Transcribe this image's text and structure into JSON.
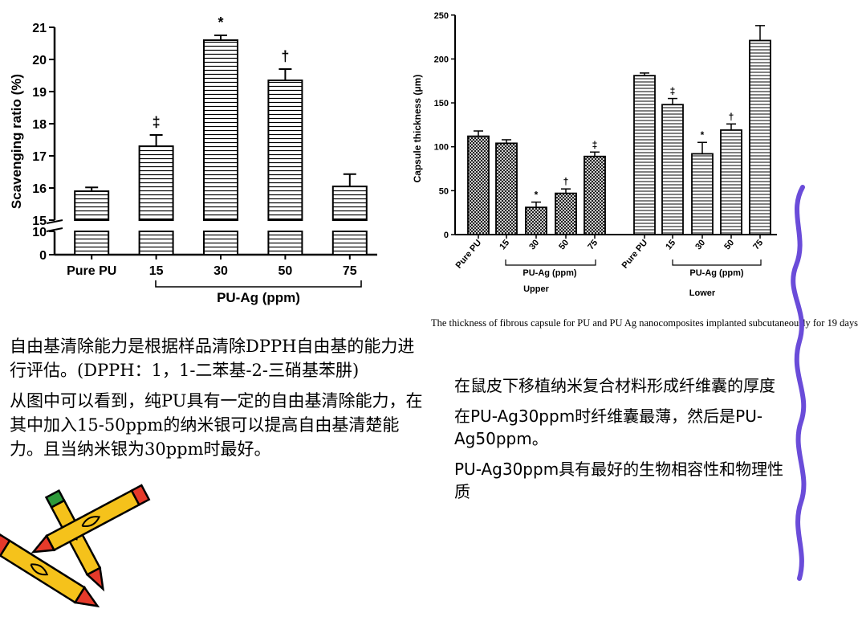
{
  "chart_data": [
    {
      "type": "bar",
      "ylabel": "Scavenging ratio (%)",
      "categories": [
        "Pure PU",
        "15",
        "30",
        "50",
        "75"
      ],
      "group_label": "PU-Ag (ppm)",
      "values": [
        15.9,
        17.3,
        20.6,
        19.35,
        16.05
      ],
      "errors": [
        0.12,
        0.35,
        0.15,
        0.35,
        0.38
      ],
      "markers": [
        "",
        "‡",
        "*",
        "†",
        ""
      ],
      "ylim": [
        0,
        21
      ],
      "axis_break": [
        10,
        15
      ],
      "yticks": [
        0,
        10,
        15,
        16,
        17,
        18,
        19,
        20,
        21
      ],
      "bar_pattern": "horizontal-lines"
    },
    {
      "type": "bar",
      "ylabel": "Capsule thickness (μm)",
      "categories": [
        "Pure PU",
        "15",
        "30",
        "50",
        "75",
        "Pure PU",
        "15",
        "30",
        "50",
        "75"
      ],
      "groups": [
        {
          "name": "Upper",
          "sublabel": "PU-Ag (ppm)",
          "pattern": "crosshatch",
          "values": [
            112,
            104,
            31,
            47,
            89
          ],
          "errors": [
            6,
            4,
            6,
            5,
            5
          ],
          "markers": [
            "",
            "",
            "*",
            "†",
            "‡"
          ]
        },
        {
          "name": "Lower",
          "sublabel": "PU-Ag (ppm)",
          "pattern": "horizontal-lines",
          "values": [
            181,
            148,
            92,
            119,
            221
          ],
          "errors": [
            3,
            7,
            13,
            7,
            17
          ],
          "markers": [
            "",
            "‡",
            "*",
            "†",
            ""
          ]
        }
      ],
      "ylim": [
        0,
        250
      ],
      "yticks": [
        0,
        50,
        100,
        150,
        200,
        250
      ]
    }
  ],
  "right_chart_caption": "The thickness of fibrous capsule for PU and PU  Ag nanocomposites implanted subcutaneously for 19 days",
  "left_text": {
    "p1": "自由基清除能力是根据样品清除DPPH自由基的能力进行评估。(DPPH：1，1-二苯基-2-三硝基苯肼)",
    "p2": "从图中可以看到，纯PU具有一定的自由基清除能力，在其中加入15-50ppm的纳米银可以提高自由基清楚能力。且当纳米银为30ppm时最好。"
  },
  "right_text": {
    "p1": "在鼠皮下移植纳米复合材料形成纤维囊的厚度",
    "p2": "在PU-Ag30ppm时纤维囊最薄，然后是PU-Ag50ppm。",
    "p3": "PU-Ag30ppm具有最好的生物相容性和物理性质"
  },
  "colors": {
    "text": "#000000",
    "decoration": "#6a4cd9",
    "pencil_body": "#f5c21b",
    "pencil_tip": "#e53a2a",
    "pencil_cap": "#2e9a3a"
  }
}
